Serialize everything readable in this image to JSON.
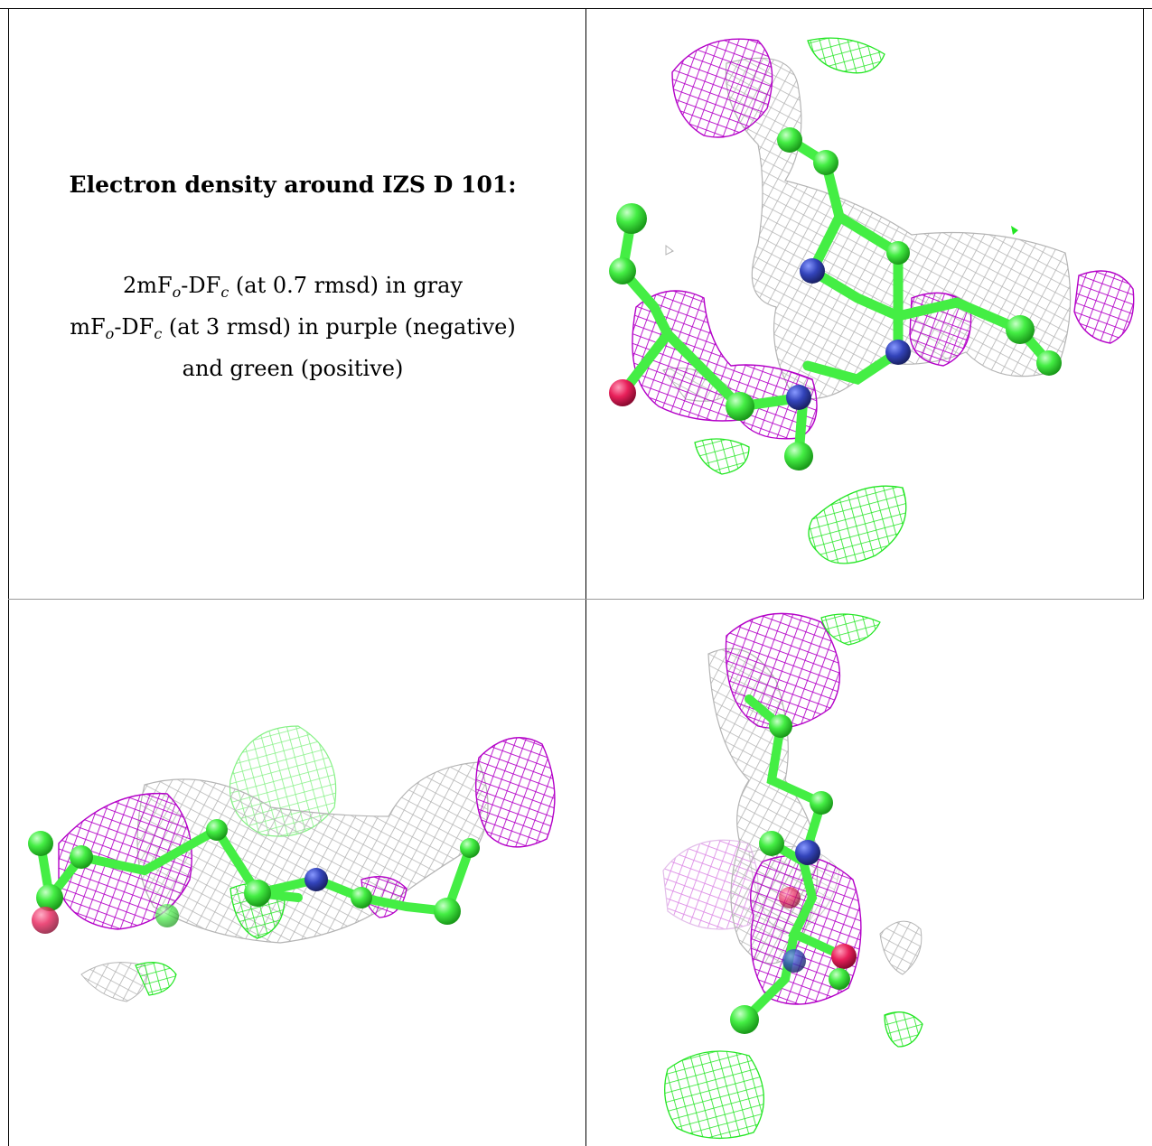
{
  "caption": {
    "title": "Electron density around IZS D 101:",
    "legend_line1": {
      "pre": "2mF",
      "sub1": "o",
      "mid": "-DF",
      "sub2": "c",
      "post": " (at 0.7 rmsd) in gray"
    },
    "legend_line2": {
      "pre": "mF",
      "sub1": "o",
      "mid": "-DF",
      "sub2": "c",
      "post": " (at 3 rmsd) in purple (negative)"
    },
    "legend_line3": "and green (positive)"
  },
  "colors": {
    "map_2fofc": "#b4b4b4",
    "map_negative": "#b400c8",
    "map_positive": "#22e622",
    "carbon": "#44ee44",
    "nitrogen": "#3344bb",
    "oxygen": "#e8205a"
  },
  "panels": [
    {
      "name": "view-top-right"
    },
    {
      "name": "view-bottom-left"
    },
    {
      "name": "view-bottom-right"
    }
  ]
}
